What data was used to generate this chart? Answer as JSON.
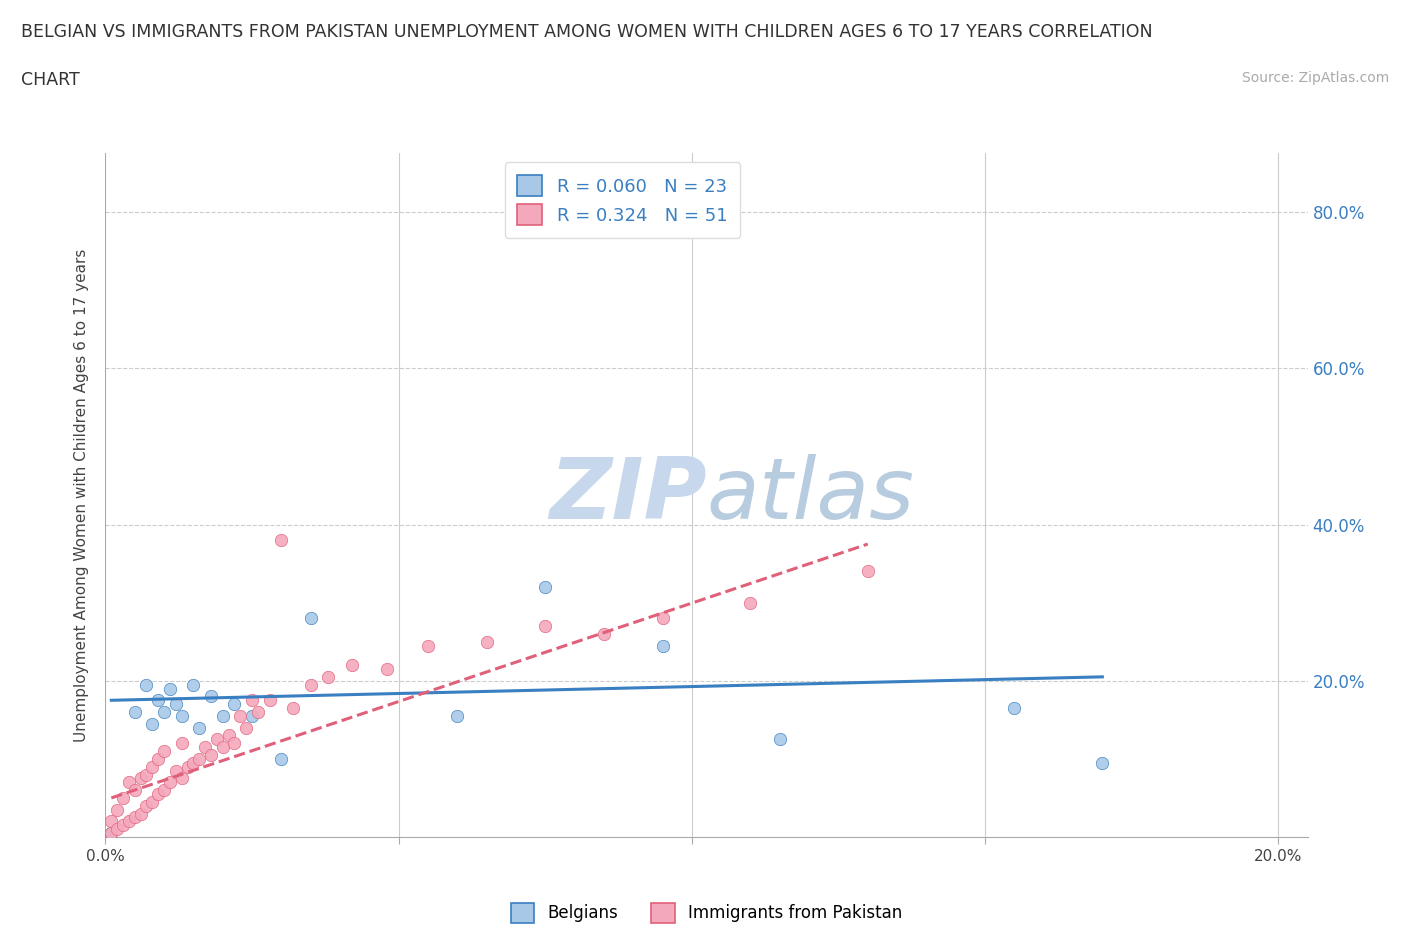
{
  "title_line1": "BELGIAN VS IMMIGRANTS FROM PAKISTAN UNEMPLOYMENT AMONG WOMEN WITH CHILDREN AGES 6 TO 17 YEARS CORRELATION",
  "title_line2": "CHART",
  "source_text": "Source: ZipAtlas.com",
  "ylabel": "Unemployment Among Women with Children Ages 6 to 17 years",
  "xlim": [
    0.0,
    0.205
  ],
  "ylim": [
    0.0,
    0.875
  ],
  "ytick_vals": [
    0.0,
    0.2,
    0.4,
    0.6,
    0.8
  ],
  "xtick_vals": [
    0.0,
    0.05,
    0.1,
    0.15,
    0.2
  ],
  "belgian_R": 0.06,
  "belgian_N": 23,
  "pakistan_R": 0.324,
  "pakistan_N": 51,
  "belgian_color": "#a8c8e8",
  "pakistan_color": "#f4a8bc",
  "belgian_line_color": "#3a7fc1",
  "pakistan_line_color": "#e0607a",
  "watermark_color_zip": "#c8d8ec",
  "watermark_color_atlas": "#b8cce0",
  "background_color": "#ffffff",
  "belgian_x": [
    0.001,
    0.005,
    0.007,
    0.008,
    0.009,
    0.01,
    0.011,
    0.012,
    0.013,
    0.015,
    0.016,
    0.018,
    0.02,
    0.022,
    0.025,
    0.03,
    0.035,
    0.06,
    0.075,
    0.095,
    0.115,
    0.155,
    0.17
  ],
  "belgian_y": [
    0.005,
    0.16,
    0.195,
    0.145,
    0.175,
    0.16,
    0.19,
    0.17,
    0.155,
    0.195,
    0.14,
    0.18,
    0.155,
    0.17,
    0.155,
    0.1,
    0.28,
    0.155,
    0.32,
    0.245,
    0.125,
    0.165,
    0.095
  ],
  "pakistan_x": [
    0.001,
    0.001,
    0.002,
    0.002,
    0.003,
    0.003,
    0.004,
    0.004,
    0.005,
    0.005,
    0.006,
    0.006,
    0.007,
    0.007,
    0.008,
    0.008,
    0.009,
    0.009,
    0.01,
    0.01,
    0.011,
    0.012,
    0.013,
    0.013,
    0.014,
    0.015,
    0.016,
    0.017,
    0.018,
    0.019,
    0.02,
    0.021,
    0.022,
    0.023,
    0.024,
    0.025,
    0.026,
    0.028,
    0.03,
    0.032,
    0.035,
    0.038,
    0.042,
    0.048,
    0.055,
    0.065,
    0.075,
    0.085,
    0.095,
    0.11,
    0.13
  ],
  "pakistan_y": [
    0.005,
    0.02,
    0.01,
    0.035,
    0.015,
    0.05,
    0.02,
    0.07,
    0.025,
    0.06,
    0.03,
    0.075,
    0.04,
    0.08,
    0.045,
    0.09,
    0.055,
    0.1,
    0.06,
    0.11,
    0.07,
    0.085,
    0.075,
    0.12,
    0.09,
    0.095,
    0.1,
    0.115,
    0.105,
    0.125,
    0.115,
    0.13,
    0.12,
    0.155,
    0.14,
    0.175,
    0.16,
    0.175,
    0.38,
    0.165,
    0.195,
    0.205,
    0.22,
    0.215,
    0.245,
    0.25,
    0.27,
    0.26,
    0.28,
    0.3,
    0.34
  ],
  "belgian_trend_x": [
    0.001,
    0.17
  ],
  "belgian_trend_y": [
    0.175,
    0.205
  ],
  "pakistan_trend_x": [
    0.001,
    0.13
  ],
  "pakistan_trend_y": [
    0.05,
    0.375
  ]
}
